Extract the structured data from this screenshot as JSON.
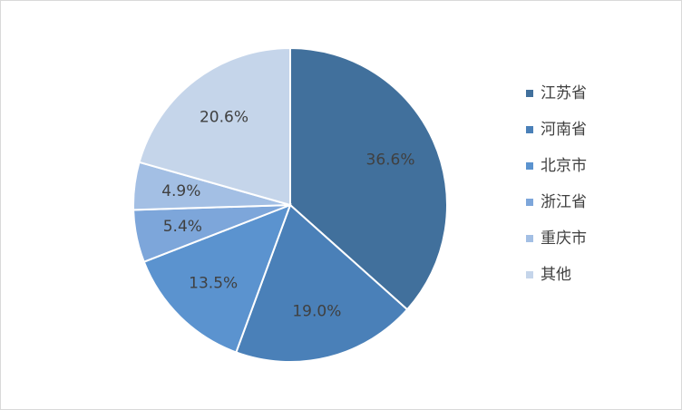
{
  "chart_data": {
    "type": "pie",
    "categories": [
      "江苏省",
      "河南省",
      "北京市",
      "浙江省",
      "重庆市",
      "其他"
    ],
    "values": [
      36.6,
      19.0,
      13.5,
      5.4,
      4.9,
      20.6
    ],
    "value_labels": [
      "36.6%",
      "19.0%",
      "13.5%",
      "5.4%",
      "4.9%",
      "20.6%"
    ],
    "colors": [
      "#41709c",
      "#4a80b8",
      "#5b93cf",
      "#7da6da",
      "#a3bfe4",
      "#c5d5ea"
    ],
    "legend": "right"
  }
}
